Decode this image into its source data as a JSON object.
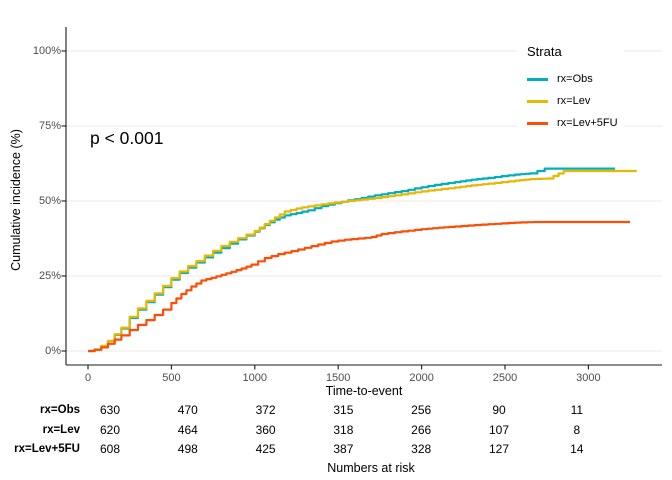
{
  "chart_data": {
    "type": "line",
    "subtype": "cumulative-incidence-step-curves",
    "xlabel": "Time-to-event",
    "ylabel": "Cumulative incidence (%)",
    "annotation": "p < 0.001",
    "legend_title": "Strata",
    "legend_position": "top-right-inside",
    "grid": "horizontal-only",
    "xlim": [
      0,
      3440
    ],
    "ylim": [
      0,
      100
    ],
    "x_ticks": [
      0,
      500,
      1000,
      1500,
      2000,
      2500,
      3000
    ],
    "x_tick_labels": [
      "0",
      "500",
      "1000",
      "1500",
      "2000",
      "2500",
      "3000"
    ],
    "y_ticks": [
      0,
      25,
      50,
      75,
      100
    ],
    "y_tick_labels": [
      "0%",
      "25%",
      "50%",
      "75%",
      "100%"
    ],
    "grid_color": "#e9e9e9",
    "axis_color": "#1a1a1a",
    "tick_label_color": "#4d4d4d",
    "series": [
      {
        "name": "rx=Obs",
        "color": "#00AFBB",
        "points": [
          [
            0,
            0
          ],
          [
            40,
            0.5
          ],
          [
            80,
            1.6
          ],
          [
            120,
            3.3
          ],
          [
            160,
            5.4
          ],
          [
            200,
            7.5
          ],
          [
            250,
            11
          ],
          [
            300,
            13.8
          ],
          [
            350,
            16.3
          ],
          [
            400,
            18.8
          ],
          [
            450,
            21.3
          ],
          [
            500,
            23.8
          ],
          [
            550,
            26
          ],
          [
            600,
            27.8
          ],
          [
            650,
            29.5
          ],
          [
            700,
            31.2
          ],
          [
            750,
            32.8
          ],
          [
            800,
            34.3
          ],
          [
            850,
            35.8
          ],
          [
            900,
            37.2
          ],
          [
            950,
            38.5
          ],
          [
            1000,
            39.8
          ],
          [
            1060,
            42
          ],
          [
            1120,
            43.8
          ],
          [
            1180,
            45.2
          ],
          [
            1250,
            46
          ],
          [
            1320,
            46.9
          ],
          [
            1400,
            48.3
          ],
          [
            1480,
            49.3
          ],
          [
            1560,
            50.2
          ],
          [
            1640,
            51
          ],
          [
            1720,
            51.9
          ],
          [
            1800,
            52.6
          ],
          [
            1880,
            53.3
          ],
          [
            1960,
            54.2
          ],
          [
            2040,
            55
          ],
          [
            2120,
            55.7
          ],
          [
            2200,
            56.3
          ],
          [
            2300,
            57.1
          ],
          [
            2400,
            57.7
          ],
          [
            2480,
            58.3
          ],
          [
            2560,
            58.8
          ],
          [
            2650,
            59.2
          ],
          [
            2738,
            60.8
          ],
          [
            3160,
            60.8
          ]
        ]
      },
      {
        "name": "rx=Lev",
        "color": "#E7B800",
        "points": [
          [
            0,
            0
          ],
          [
            40,
            0.5
          ],
          [
            80,
            1.7
          ],
          [
            120,
            3.4
          ],
          [
            160,
            5.6
          ],
          [
            200,
            7.8
          ],
          [
            250,
            11.4
          ],
          [
            300,
            14.2
          ],
          [
            350,
            16.7
          ],
          [
            400,
            19.2
          ],
          [
            450,
            21.7
          ],
          [
            500,
            24.3
          ],
          [
            550,
            26.5
          ],
          [
            600,
            28.3
          ],
          [
            650,
            30
          ],
          [
            700,
            31.8
          ],
          [
            750,
            33.4
          ],
          [
            800,
            35
          ],
          [
            850,
            36.4
          ],
          [
            900,
            37.6
          ],
          [
            950,
            38.8
          ],
          [
            1000,
            40
          ],
          [
            1060,
            42.3
          ],
          [
            1120,
            44.5
          ],
          [
            1180,
            46.5
          ],
          [
            1250,
            47.5
          ],
          [
            1320,
            48.2
          ],
          [
            1400,
            48.9
          ],
          [
            1480,
            49.5
          ],
          [
            1560,
            50
          ],
          [
            1640,
            50.5
          ],
          [
            1720,
            51
          ],
          [
            1800,
            51.6
          ],
          [
            1880,
            52.2
          ],
          [
            1960,
            52.9
          ],
          [
            2040,
            53.5
          ],
          [
            2120,
            54
          ],
          [
            2200,
            54.5
          ],
          [
            2300,
            55.2
          ],
          [
            2400,
            55.8
          ],
          [
            2480,
            56.3
          ],
          [
            2560,
            56.8
          ],
          [
            2650,
            57.3
          ],
          [
            2760,
            57.5
          ],
          [
            2852,
            60
          ],
          [
            3290,
            60
          ]
        ]
      },
      {
        "name": "rx=Lev+5FU",
        "color": "#FC4E07",
        "points": [
          [
            0,
            0
          ],
          [
            40,
            0.4
          ],
          [
            80,
            1.2
          ],
          [
            120,
            2.4
          ],
          [
            160,
            3.8
          ],
          [
            200,
            5.2
          ],
          [
            250,
            7
          ],
          [
            300,
            8.7
          ],
          [
            350,
            10.3
          ],
          [
            400,
            12
          ],
          [
            450,
            13.8
          ],
          [
            500,
            16
          ],
          [
            560,
            19
          ],
          [
            620,
            21.5
          ],
          [
            680,
            23.5
          ],
          [
            740,
            24.4
          ],
          [
            800,
            25.4
          ],
          [
            860,
            26.4
          ],
          [
            920,
            27.5
          ],
          [
            980,
            28.8
          ],
          [
            1060,
            31
          ],
          [
            1140,
            32.3
          ],
          [
            1220,
            33.3
          ],
          [
            1300,
            34.4
          ],
          [
            1380,
            35.5
          ],
          [
            1460,
            36.5
          ],
          [
            1540,
            37.1
          ],
          [
            1620,
            37.5
          ],
          [
            1700,
            38
          ],
          [
            1760,
            39
          ],
          [
            1840,
            39.6
          ],
          [
            1920,
            40.1
          ],
          [
            2000,
            40.6
          ],
          [
            2100,
            41.1
          ],
          [
            2200,
            41.5
          ],
          [
            2320,
            42
          ],
          [
            2440,
            42.4
          ],
          [
            2560,
            42.8
          ],
          [
            2672,
            43
          ],
          [
            3250,
            43
          ]
        ]
      }
    ],
    "risk_table": {
      "title": "Numbers at risk",
      "times": [
        0,
        500,
        1000,
        1500,
        2000,
        2500,
        3000
      ],
      "rows": [
        {
          "label": "rx=Obs",
          "values": [
            630,
            470,
            372,
            315,
            256,
            90,
            11
          ]
        },
        {
          "label": "rx=Lev",
          "values": [
            620,
            464,
            360,
            318,
            266,
            107,
            8
          ]
        },
        {
          "label": "rx=Lev+5FU",
          "values": [
            608,
            498,
            425,
            387,
            328,
            127,
            14
          ]
        }
      ]
    }
  }
}
